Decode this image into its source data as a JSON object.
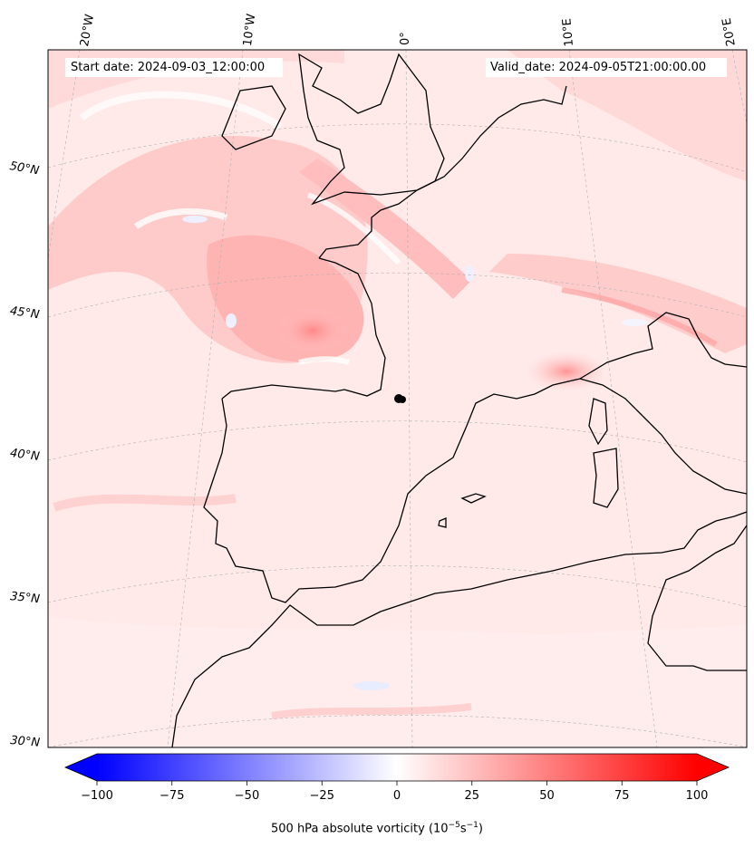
{
  "header": {
    "start_date": "Start date: 2024-09-03_12:00:00",
    "valid_date": "Valid_date: 2024-09-05T21:00:00.00"
  },
  "graticule": {
    "lon_labels": [
      "20°W",
      "10°W",
      "0°",
      "10°E",
      "20°E"
    ],
    "lat_labels": [
      "50°N",
      "45°N",
      "40°N",
      "35°N",
      "30°N"
    ]
  },
  "colorbar": {
    "ticks": [
      "−100",
      "−75",
      "−50",
      "−25",
      "0",
      "25",
      "50",
      "75",
      "100"
    ],
    "title_prefix": "500 hPa absolute vorticity (10",
    "title_exp1": "−5",
    "title_mid": "s",
    "title_exp2": "−1",
    "title_suffix": ")",
    "colors": {
      "negative": "#0000ff",
      "zero": "#ffffff",
      "positive": "#ff0000"
    }
  },
  "map": {
    "region": "Western Europe / Mediterranean",
    "colormap": "bwr",
    "field": "500 hPa absolute vorticity"
  }
}
